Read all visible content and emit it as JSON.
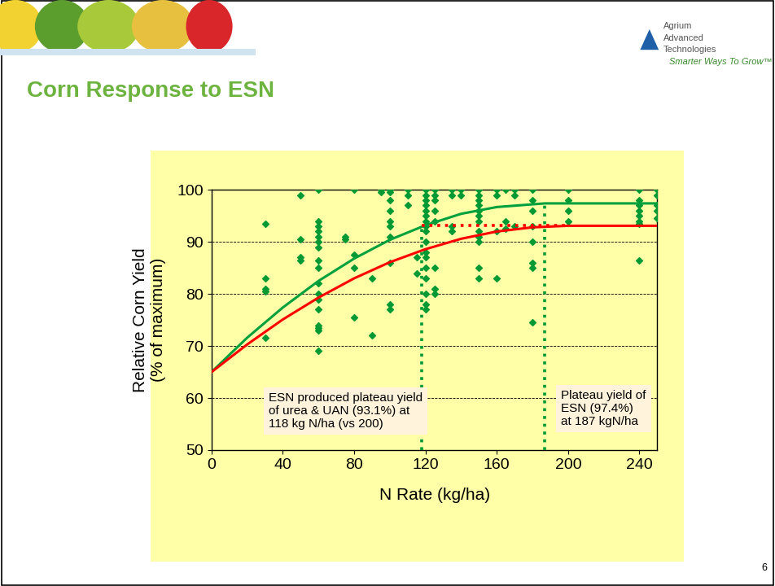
{
  "chart_data": {
    "type": "scatter",
    "title": "Corn Response to ESN",
    "x_label": "N Rate (kg/ha)",
    "y_label": "Relative Corn Yield\n(% of maximum)",
    "xlim": [
      0,
      250
    ],
    "ylim": [
      50,
      100
    ],
    "xticks": [
      0,
      40,
      80,
      120,
      160,
      200,
      240
    ],
    "yticks": [
      50,
      60,
      70,
      80,
      90,
      100
    ],
    "grid": true,
    "annotations": [
      "ESN produced plateau yield\nof urea & UAN (93.1%) at\n118 kg N/ha (vs 200)",
      "Plateau yield of\nESN (97.4%)\nat 187 kgN/ha"
    ],
    "series": [
      {
        "type": "scatter",
        "color": "#009933",
        "marker": "diamond",
        "x": [
          30,
          30,
          30,
          30,
          30,
          50,
          50,
          50,
          50,
          60,
          60,
          60,
          60,
          60,
          60,
          60,
          60,
          60,
          60,
          60,
          60,
          60,
          60,
          60,
          60,
          60,
          75,
          75,
          80,
          80,
          80,
          80,
          90,
          90,
          95,
          95,
          100,
          100,
          100,
          100,
          100,
          100,
          100,
          100,
          100,
          100,
          110,
          110,
          110,
          115,
          115,
          120,
          120,
          120,
          120,
          120,
          120,
          120,
          120,
          120,
          120,
          120,
          120,
          120,
          120,
          120,
          120,
          120,
          125,
          125,
          125,
          125,
          125,
          125,
          125,
          125,
          135,
          135,
          135,
          135,
          140,
          140,
          150,
          150,
          150,
          150,
          150,
          150,
          150,
          150,
          150,
          150,
          150,
          150,
          160,
          160,
          160,
          160,
          165,
          165,
          165,
          170,
          170,
          170,
          180,
          180,
          180,
          180,
          180,
          180,
          180,
          180,
          200,
          200,
          200,
          200,
          240,
          240,
          240,
          240,
          240,
          240,
          240,
          240,
          250,
          250,
          250,
          250,
          250
        ],
        "values": [
          93.5,
          83,
          81,
          80.5,
          71.5,
          99,
          90.5,
          87,
          86.5,
          100,
          94,
          93,
          92,
          91,
          90,
          89,
          86.5,
          85,
          82,
          80,
          79,
          77,
          74,
          73.5,
          73,
          69,
          91,
          90.5,
          100,
          87.5,
          85,
          75.5,
          83,
          72,
          100,
          99.5,
          100,
          99.5,
          98,
          96,
          94,
          93,
          91,
          86,
          78,
          77,
          100,
          99,
          97,
          87,
          84,
          100,
          99,
          98,
          97,
          96,
          95,
          94,
          93,
          92,
          90,
          88,
          87,
          85,
          83,
          80,
          78,
          77,
          100,
          99,
          98,
          96,
          94,
          85,
          81,
          80,
          100,
          99,
          93,
          92,
          100,
          99,
          100,
          99,
          98,
          97,
          96,
          95,
          94,
          92,
          91,
          90,
          85,
          83,
          100,
          99,
          92,
          83,
          100,
          94,
          92.5,
          100,
          99,
          93,
          100,
          98,
          96,
          93,
          90,
          86,
          85,
          74.5,
          100,
          98,
          96,
          94,
          100,
          98,
          97,
          96,
          95,
          94,
          93.5,
          86.5,
          100,
          99,
          97,
          96,
          94.5
        ]
      },
      {
        "type": "line",
        "color": "#00A03C",
        "line_style": "solid",
        "x": [
          0,
          20,
          40,
          60,
          80,
          100,
          120,
          140,
          160,
          187,
          250
        ],
        "values": [
          65,
          71.6,
          77.4,
          82.5,
          86.8,
          90.4,
          93.2,
          95.4,
          96.7,
          97.4,
          97.4
        ]
      },
      {
        "type": "line",
        "color": "#FF0000",
        "line_style": "solid",
        "x": [
          0,
          20,
          40,
          60,
          80,
          100,
          120,
          140,
          160,
          180,
          200,
          250
        ],
        "values": [
          65,
          70.3,
          75.1,
          79.3,
          83.0,
          86.1,
          88.6,
          90.6,
          92.0,
          92.8,
          93.1,
          93.1
        ]
      },
      {
        "type": "line",
        "color": "#FF0000",
        "line_style": "dotted",
        "x": [
          118,
          200
        ],
        "values": [
          93.1,
          93.1
        ]
      },
      {
        "type": "line",
        "color": "#009933",
        "line_style": "dotted",
        "x": [
          118,
          118
        ],
        "values": [
          50,
          93.1
        ]
      },
      {
        "type": "line",
        "color": "#009933",
        "line_style": "dotted",
        "x": [
          187,
          187
        ],
        "values": [
          50,
          97.4
        ]
      }
    ]
  },
  "slide": {
    "brand": [
      "Agrium",
      "Advanced",
      "Technologies"
    ],
    "tagline": "Smarter Ways To Grow™",
    "page": "6"
  }
}
